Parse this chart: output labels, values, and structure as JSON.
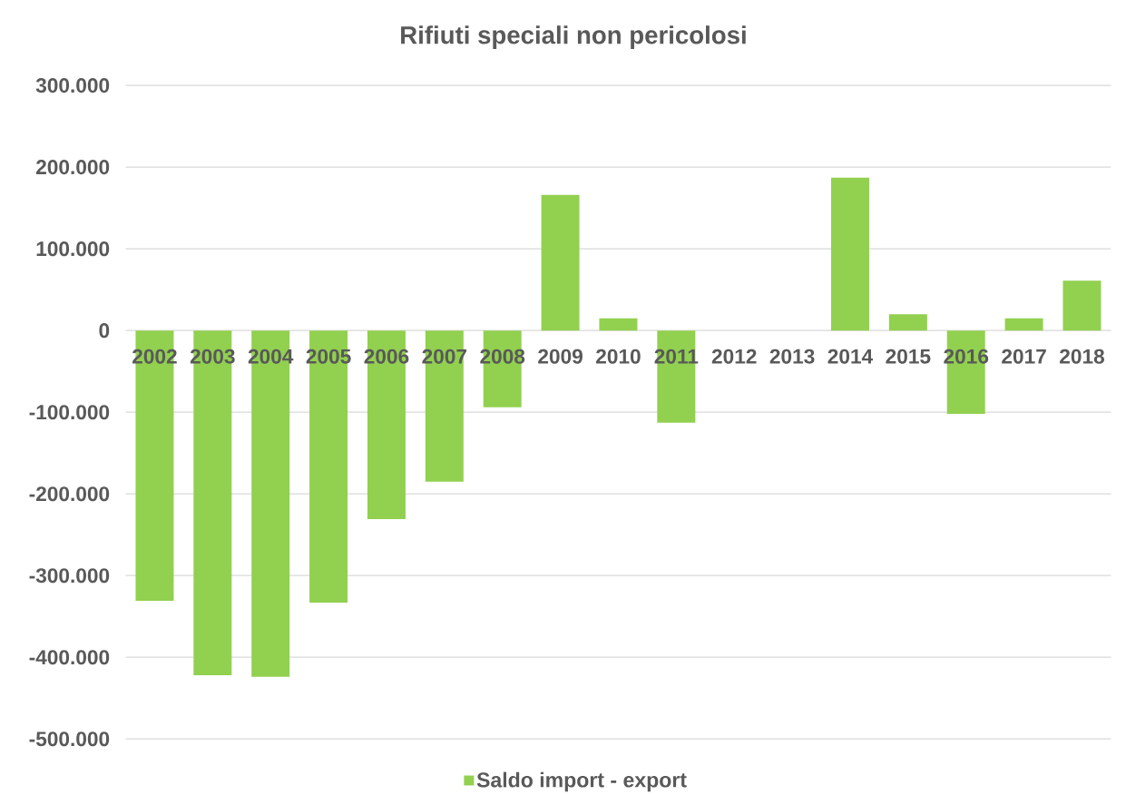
{
  "chart_data": {
    "type": "bar",
    "title": "Rifiuti speciali non pericolosi",
    "categories": [
      "2002",
      "2003",
      "2004",
      "2005",
      "2006",
      "2007",
      "2008",
      "2009",
      "2010",
      "2011",
      "2012",
      "2013",
      "2014",
      "2015",
      "2016",
      "2017",
      "2018"
    ],
    "series": [
      {
        "name": "Saldo import - export",
        "color": "#92d050",
        "values": [
          -331000,
          -422000,
          -424000,
          -333000,
          -231000,
          -185000,
          -94000,
          166000,
          15000,
          -113000,
          null,
          null,
          187000,
          20000,
          -102000,
          15000,
          61000
        ]
      }
    ],
    "ylim": [
      -500000,
      300000
    ],
    "yticks": [
      {
        "value": -500000,
        "label": "-500.000"
      },
      {
        "value": -400000,
        "label": "-400.000"
      },
      {
        "value": -300000,
        "label": "-300.000"
      },
      {
        "value": -200000,
        "label": "-200.000"
      },
      {
        "value": -100000,
        "label": "-100.000"
      },
      0,
      {
        "value": 100000,
        "label": "100.000"
      },
      {
        "value": 200000,
        "label": "200.000"
      },
      {
        "value": 300000,
        "label": "300.000"
      }
    ],
    "grid": "y",
    "legend": "bottom"
  }
}
